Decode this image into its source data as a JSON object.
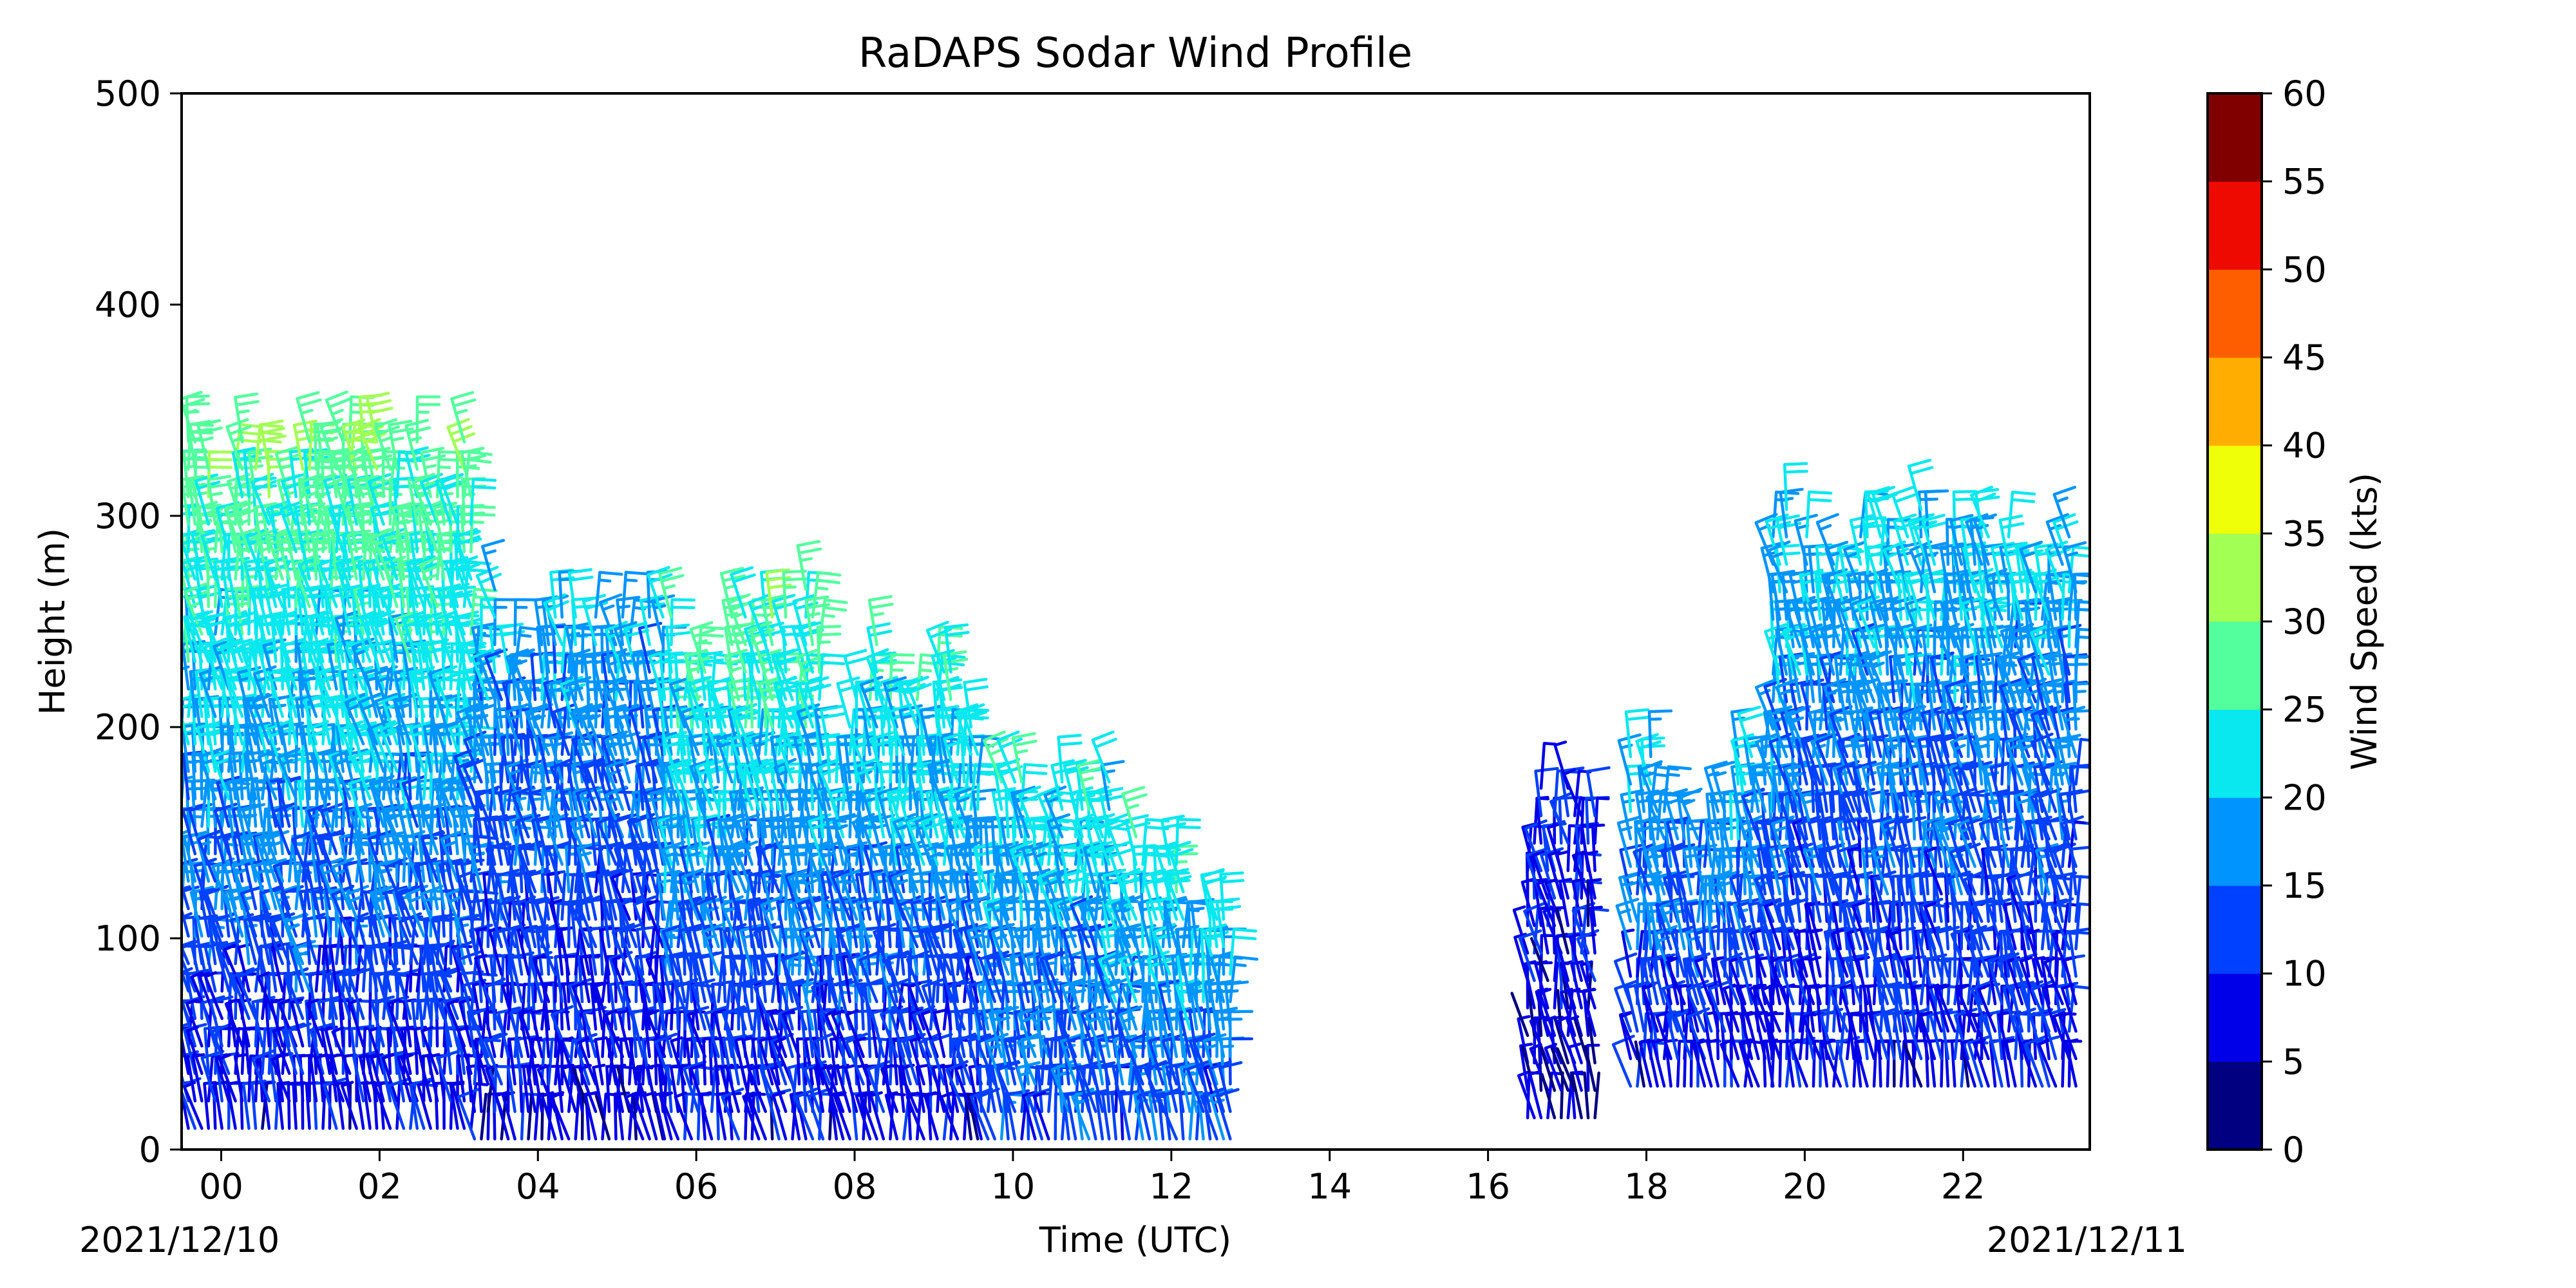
{
  "chart_data": {
    "type": "wind-barb",
    "title": "RaDAPS Sodar Wind Profile",
    "xlabel": "Time (UTC)",
    "ylabel": "Height (m)",
    "xlim": [
      -0.5,
      23.6
    ],
    "ylim": [
      0,
      500
    ],
    "x_ticks": [
      "00",
      "02",
      "04",
      "06",
      "08",
      "10",
      "12",
      "14",
      "16",
      "18",
      "20",
      "22"
    ],
    "y_ticks": [
      "0",
      "100",
      "200",
      "300",
      "400",
      "500"
    ],
    "date_start": "2021/12/10",
    "date_end": "2021/12/11",
    "colorbar": {
      "label": "Wind Speed (kts)",
      "min": 0,
      "max": 60,
      "step": 5,
      "ticks": [
        "0",
        "5",
        "10",
        "15",
        "20",
        "25",
        "30",
        "35",
        "40",
        "45",
        "50",
        "55",
        "60"
      ],
      "colors": [
        "#000080",
        "#0000e8",
        "#0040ff",
        "#0094ff",
        "#08e8ee",
        "#52ff9c",
        "#a2ff54",
        "#eeff08",
        "#ffae00",
        "#ff5e00",
        "#ef0a00",
        "#800000"
      ]
    },
    "profiles": [
      {
        "hours": [
          -0.5,
          3.2
        ],
        "base": 10,
        "top": 350,
        "speed_low": 8,
        "speed_high": 30
      },
      {
        "hours": [
          3.2,
          5.6
        ],
        "base": 5,
        "top": 270,
        "speed_low": 7,
        "speed_high": 20
      },
      {
        "hours": [
          5.6,
          7.6
        ],
        "base": 5,
        "top": 270,
        "speed_low": 8,
        "speed_high": 28
      },
      {
        "hours": [
          7.6,
          9.6
        ],
        "base": 5,
        "top": 245,
        "speed_low": 8,
        "speed_high": 26
      },
      {
        "hours": [
          9.6,
          11.3
        ],
        "base": 5,
        "top": 190,
        "speed_low": 12,
        "speed_high": 24
      },
      {
        "hours": [
          11.3,
          12.8
        ],
        "base": 5,
        "top": 150,
        "speed_low": 12,
        "speed_high": 26
      },
      {
        "hours": [
          16.5,
          17.4
        ],
        "base": 15,
        "top": 185,
        "speed_low": 6,
        "speed_high": 10
      },
      {
        "hours": [
          17.8,
          19.6
        ],
        "base": 30,
        "top": 200,
        "speed_low": 8,
        "speed_high": 22
      },
      {
        "hours": [
          19.6,
          23.5
        ],
        "base": 30,
        "top": 310,
        "speed_low": 8,
        "speed_high": 22
      }
    ]
  }
}
